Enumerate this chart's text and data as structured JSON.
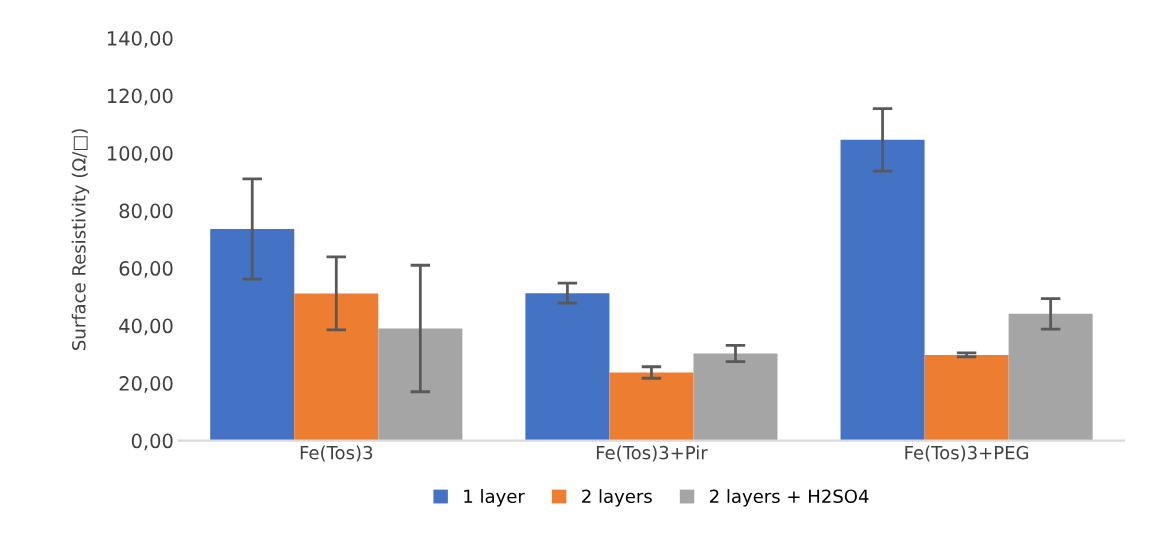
{
  "chart_data": {
    "type": "bar",
    "ylabel": "Surface Resistivity (Ω/□)",
    "categories": [
      "Fe(Tos)3",
      "Fe(Tos)3+Pir",
      "Fe(Tos)3+PEG"
    ],
    "series": [
      {
        "name": "1 layer",
        "color": "#4472c4",
        "values": [
          73.6,
          51.3,
          104.6
        ],
        "errors": [
          17.4,
          3.5,
          10.9
        ]
      },
      {
        "name": "2 layers",
        "color": "#ed7d31",
        "values": [
          51.2,
          23.7,
          29.8
        ],
        "errors": [
          12.7,
          2.0,
          0.7
        ]
      },
      {
        "name": "2 layers + H2SO4",
        "color": "#a5a5a5",
        "values": [
          39.0,
          30.3,
          44.1
        ],
        "errors": [
          22.0,
          2.8,
          5.3
        ]
      }
    ],
    "ylim": [
      0,
      140
    ],
    "yticks": [
      {
        "value": 0,
        "label": "0,00"
      },
      {
        "value": 20,
        "label": "20,00"
      },
      {
        "value": 40,
        "label": "40,00"
      },
      {
        "value": 60,
        "label": "60,00"
      },
      {
        "value": 80,
        "label": "80,00"
      },
      {
        "value": 100,
        "label": "100,00"
      },
      {
        "value": 120,
        "label": "120,00"
      },
      {
        "value": 140,
        "label": "140,00"
      }
    ],
    "grid": false,
    "legend": "bottom"
  }
}
